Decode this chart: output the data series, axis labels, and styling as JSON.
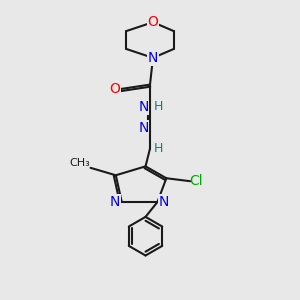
{
  "bg_color": "#e8e8e8",
  "bond_color": "#1a1a1a",
  "N_color": "#0000ee",
  "O_color": "#ff0000",
  "Cl_color": "#00aa00",
  "H_color": "#008888",
  "font_size": 10,
  "small_font_size": 8,
  "lw": 1.5,
  "xlim": [
    0,
    10
  ],
  "ylim": [
    0,
    10
  ]
}
